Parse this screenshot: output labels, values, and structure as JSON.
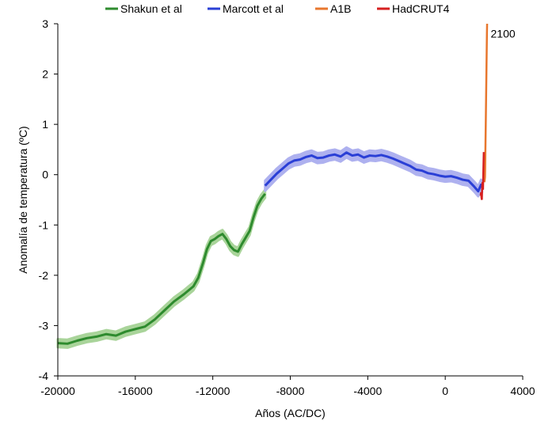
{
  "chart_data": {
    "type": "line",
    "title": "",
    "xlabel": "Años (AC/DC)",
    "ylabel": "Anomalía de temperatura (ºC)",
    "xlim": [
      -20000,
      4000
    ],
    "ylim": [
      -4,
      3
    ],
    "x_ticks": [
      "-20000",
      "-16000",
      "-12000",
      "-8000",
      "-4000",
      "0",
      "4000"
    ],
    "y_ticks": [
      "3",
      "2",
      "1",
      "0",
      "-1",
      "-2",
      "-3",
      "-4"
    ],
    "legend_position": "top",
    "grid": false,
    "annotations": [
      {
        "text": "2100",
        "x": 2100,
        "y": 2.8
      }
    ],
    "series": [
      {
        "name": "Shakun et al",
        "color": "#2e8b2e",
        "band_color": "#a9d49a",
        "band_halfwidth": 0.08,
        "x": [
          -20000,
          -19500,
          -19000,
          -18500,
          -18000,
          -17500,
          -17000,
          -16500,
          -16000,
          -15500,
          -15000,
          -14500,
          -14000,
          -13500,
          -13000,
          -12750,
          -12500,
          -12300,
          -12100,
          -11900,
          -11700,
          -11500,
          -11300,
          -11100,
          -10900,
          -10700,
          -10500,
          -10300,
          -10100,
          -9900,
          -9700,
          -9500,
          -9300
        ],
        "y": [
          -3.35,
          -3.36,
          -3.3,
          -3.25,
          -3.22,
          -3.17,
          -3.2,
          -3.12,
          -3.07,
          -3.02,
          -2.88,
          -2.7,
          -2.52,
          -2.38,
          -2.22,
          -2.05,
          -1.75,
          -1.48,
          -1.32,
          -1.28,
          -1.22,
          -1.18,
          -1.28,
          -1.42,
          -1.5,
          -1.53,
          -1.38,
          -1.25,
          -1.12,
          -0.85,
          -0.62,
          -0.48,
          -0.38
        ]
      },
      {
        "name": "Marcott et al",
        "color": "#2a3fd6",
        "band_color": "#aeb1ef",
        "band_halfwidth": 0.1,
        "x": [
          -9300,
          -9000,
          -8700,
          -8400,
          -8100,
          -7800,
          -7500,
          -7200,
          -6900,
          -6600,
          -6300,
          -6000,
          -5700,
          -5400,
          -5100,
          -4800,
          -4500,
          -4200,
          -3900,
          -3600,
          -3300,
          -3000,
          -2700,
          -2400,
          -2100,
          -1800,
          -1500,
          -1200,
          -900,
          -600,
          -300,
          0,
          300,
          600,
          900,
          1200,
          1500,
          1700,
          1850,
          1900
        ],
        "y": [
          -0.22,
          -0.1,
          0.02,
          0.12,
          0.22,
          0.28,
          0.3,
          0.35,
          0.38,
          0.33,
          0.34,
          0.38,
          0.4,
          0.36,
          0.44,
          0.38,
          0.4,
          0.34,
          0.38,
          0.37,
          0.39,
          0.36,
          0.32,
          0.27,
          0.22,
          0.17,
          0.1,
          0.08,
          0.03,
          0.01,
          -0.02,
          -0.04,
          -0.03,
          -0.06,
          -0.1,
          -0.12,
          -0.24,
          -0.33,
          -0.2,
          -0.25
        ]
      },
      {
        "name": "A1B",
        "color": "#e8772e",
        "x": [
          1960,
          1990,
          2000,
          2010,
          2030,
          2050,
          2070,
          2090,
          2100
        ],
        "y": [
          -0.15,
          -0.05,
          0.15,
          0.45,
          1.0,
          1.6,
          2.2,
          2.8,
          3.0
        ]
      },
      {
        "name": "HadCRUT4",
        "color": "#d61f1f",
        "x": [
          1850,
          1870,
          1890,
          1910,
          1930,
          1950,
          1970,
          1990,
          2010
        ],
        "y": [
          -0.42,
          -0.35,
          -0.45,
          -0.5,
          -0.2,
          -0.15,
          -0.3,
          0.1,
          0.45
        ]
      }
    ]
  }
}
